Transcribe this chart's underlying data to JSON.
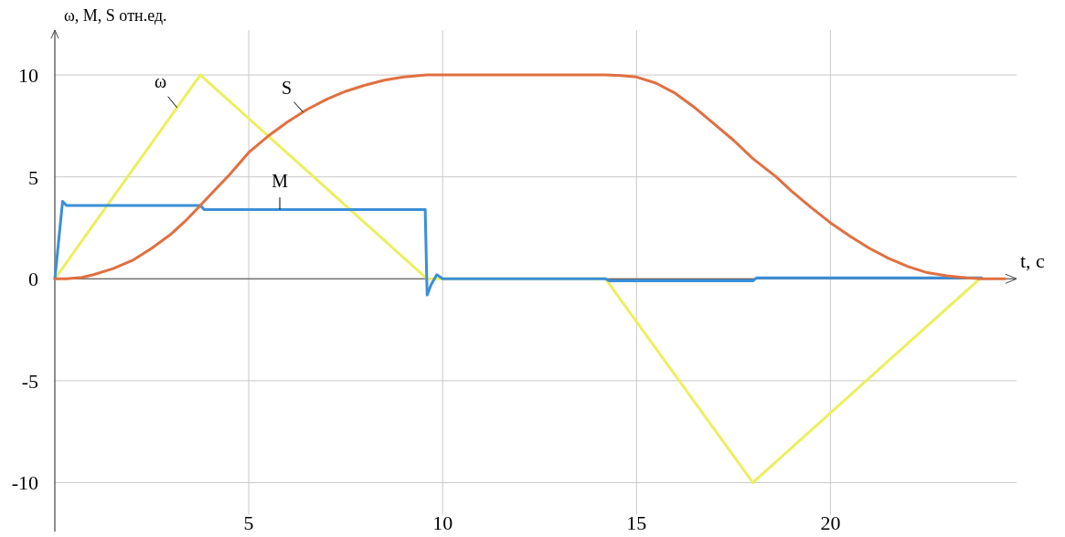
{
  "chart_data": {
    "type": "line",
    "xlabel": "t, c",
    "ylabel": "ω, M, S отн.ед.",
    "xlim": [
      0,
      24.8
    ],
    "ylim": [
      -12.4,
      12.2
    ],
    "xticks": [
      5,
      10,
      15,
      20
    ],
    "yticks": [
      -10,
      -5,
      0,
      5,
      10
    ],
    "grid": true,
    "series": [
      {
        "name": "ω",
        "color": "#ecef5c",
        "x": [
          0,
          3.75,
          9.6,
          14.2,
          18.0,
          23.85
        ],
        "values": [
          0,
          10,
          0,
          0,
          -10,
          0
        ]
      },
      {
        "name": "M",
        "color": "#3a8fd8",
        "x": [
          0,
          0.2,
          0.3,
          3.75,
          3.85,
          9.55,
          9.6,
          9.7,
          9.85,
          10.0,
          14.2,
          14.3,
          18.0,
          18.1,
          23.9
        ],
        "values": [
          0,
          3.8,
          3.6,
          3.6,
          3.4,
          3.4,
          -0.8,
          -0.3,
          0.2,
          0,
          0,
          -0.1,
          -0.1,
          0.05,
          0.05
        ]
      },
      {
        "name": "S",
        "color": "#e07040",
        "x": [
          0,
          0.3,
          0.7,
          1,
          1.5,
          2,
          2.5,
          3,
          3.4,
          3.75,
          4.1,
          4.5,
          5,
          5.5,
          6,
          6.5,
          7,
          7.5,
          8,
          8.5,
          9,
          9.6,
          14.2,
          14.6,
          15,
          15.5,
          16,
          16.5,
          17,
          17.5,
          18,
          18.6,
          19,
          19.5,
          20,
          20.5,
          21,
          21.5,
          22,
          22.5,
          23,
          23.5,
          23.9,
          24.5
        ],
        "values": [
          0,
          0,
          0.07,
          0.2,
          0.5,
          0.9,
          1.5,
          2.2,
          2.9,
          3.6,
          4.3,
          5.1,
          6.2,
          7.0,
          7.7,
          8.3,
          8.8,
          9.2,
          9.5,
          9.75,
          9.9,
          10,
          10,
          9.97,
          9.9,
          9.6,
          9.1,
          8.4,
          7.6,
          6.8,
          5.9,
          5.0,
          4.3,
          3.5,
          2.75,
          2.1,
          1.5,
          1.0,
          0.6,
          0.3,
          0.15,
          0.05,
          0,
          0
        ]
      }
    ]
  }
}
